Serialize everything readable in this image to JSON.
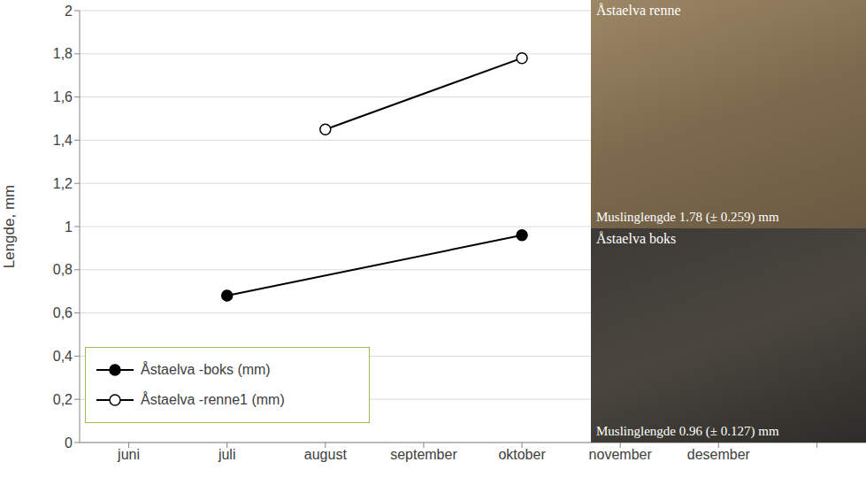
{
  "chart_data": {
    "type": "line",
    "y_label": "Lengde, mm",
    "categories": [
      "juni",
      "juli",
      "august",
      "september",
      "oktober",
      "november",
      "desember",
      null
    ],
    "series": [
      {
        "name": "Åstaelva -boks (mm)",
        "color": "#000000",
        "marker": "filled_circle",
        "line_style": "solid",
        "values": [
          null,
          0.68,
          null,
          null,
          0.96,
          null,
          null,
          null
        ]
      },
      {
        "name": "Åstaelva -renne1 (mm)",
        "color": "#000000",
        "marker": "open_circle",
        "line_style": "solid",
        "values": [
          null,
          null,
          1.45,
          null,
          1.78,
          null,
          null,
          null
        ]
      }
    ],
    "ylim": [
      0,
      2
    ],
    "yticks": [
      0,
      {
        "value": 0.2,
        "label": "0,2"
      },
      {
        "value": 0.4,
        "label": "0,4"
      },
      {
        "value": 0.6,
        "label": "0,6"
      },
      {
        "value": 0.8,
        "label": "0,8"
      },
      1,
      {
        "value": 1.2,
        "label": "1,2"
      },
      {
        "value": 1.4,
        "label": "1,4"
      },
      {
        "value": 1.6,
        "label": "1,6"
      },
      {
        "value": 1.8,
        "label": "1,8"
      },
      2
    ],
    "grid": true,
    "legend": "lower left",
    "annotations": [
      {
        "title": "Åstaelva renne",
        "caption": "Muslinglengde 1.78 (± 0.259) mm"
      },
      {
        "title": "Åstaelva boks",
        "caption": "Muslinglengde 0.96 (± 0.127) mm"
      }
    ]
  }
}
